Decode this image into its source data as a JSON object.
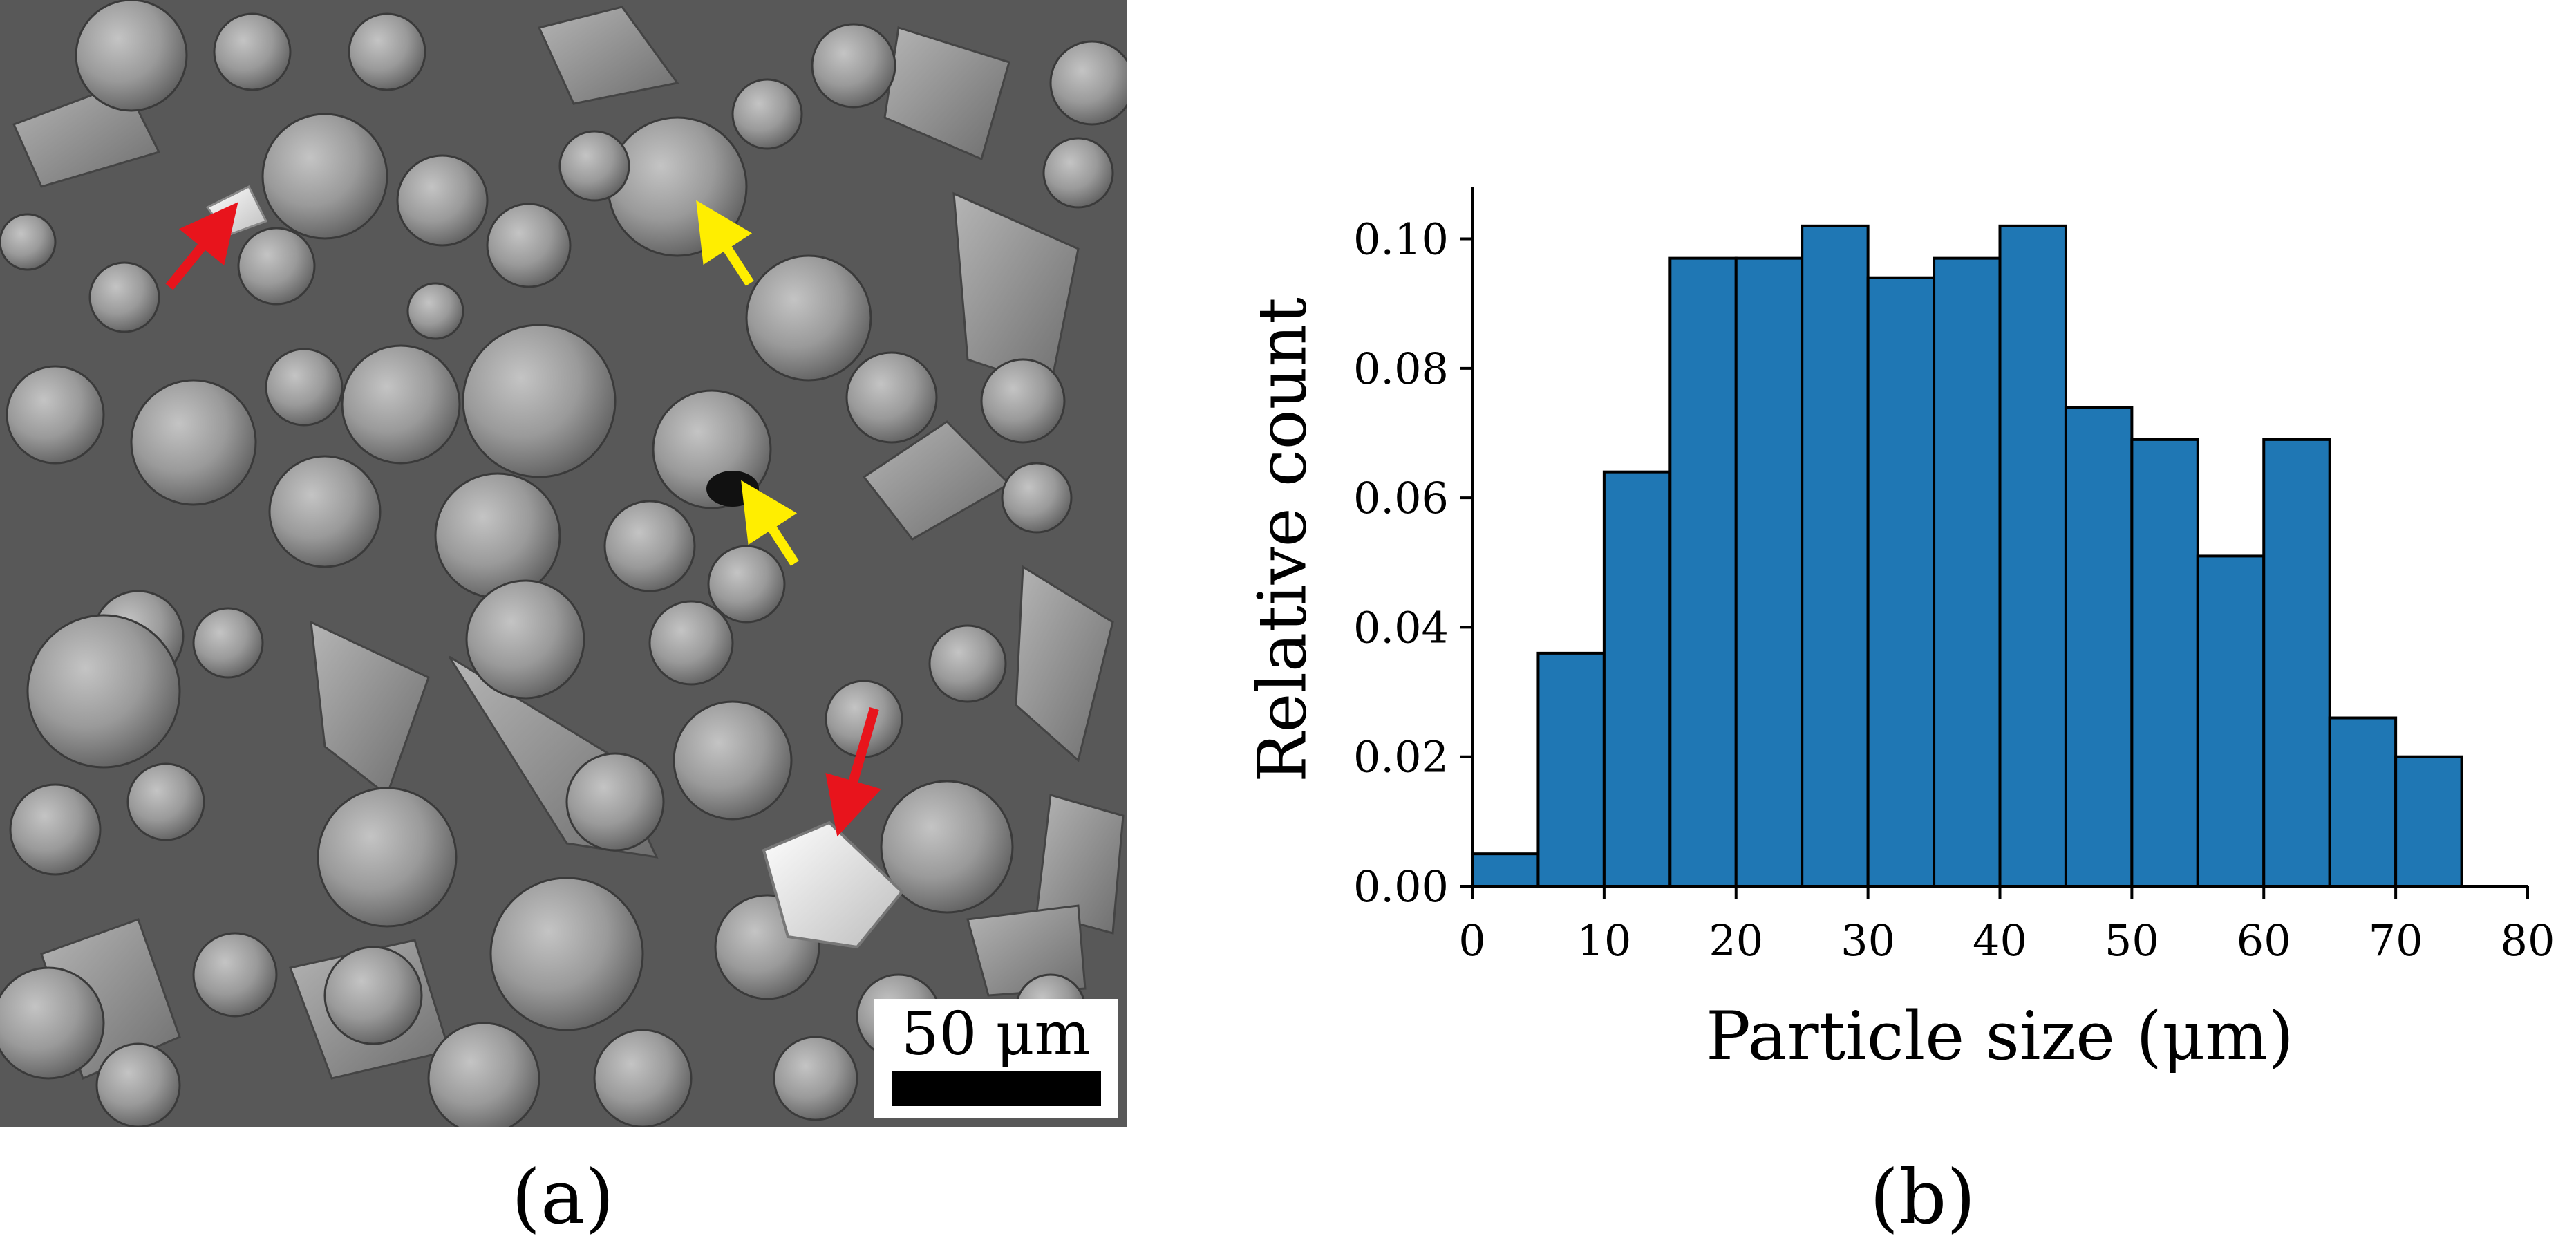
{
  "panels": {
    "a": {
      "caption": "(a)",
      "scale_bar_label": "50 μm"
    },
    "b": {
      "caption": "(b)"
    }
  },
  "annotations": {
    "arrow_colors": {
      "red": "#e8141c",
      "yellow": "#ffee00"
    }
  },
  "chart_data": {
    "type": "bar",
    "title": "",
    "xlabel": "Particle size (μm)",
    "ylabel": "Relative count",
    "bin_edges": [
      0,
      5,
      10,
      15,
      20,
      25,
      30,
      35,
      40,
      45,
      50,
      55,
      60,
      65,
      70,
      75
    ],
    "values": [
      0.005,
      0.036,
      0.064,
      0.097,
      0.097,
      0.102,
      0.094,
      0.097,
      0.102,
      0.074,
      0.069,
      0.051,
      0.069,
      0.026,
      0.02
    ],
    "xlim": [
      0,
      80
    ],
    "ylim": [
      0,
      0.107
    ],
    "xticks": [
      0,
      10,
      20,
      30,
      40,
      50,
      60,
      70,
      80
    ],
    "xtick_labels": [
      "0",
      "10",
      "20",
      "30",
      "40",
      "50",
      "60",
      "70",
      "80"
    ],
    "yticks": [
      0,
      0.02,
      0.04,
      0.06,
      0.08,
      0.1
    ],
    "ytick_labels": [
      "0.00",
      "0.02",
      "0.04",
      "0.06",
      "0.08",
      "0.10"
    ],
    "bar_color": "#1f77b4",
    "edge_color": "#000000",
    "grid": false
  }
}
